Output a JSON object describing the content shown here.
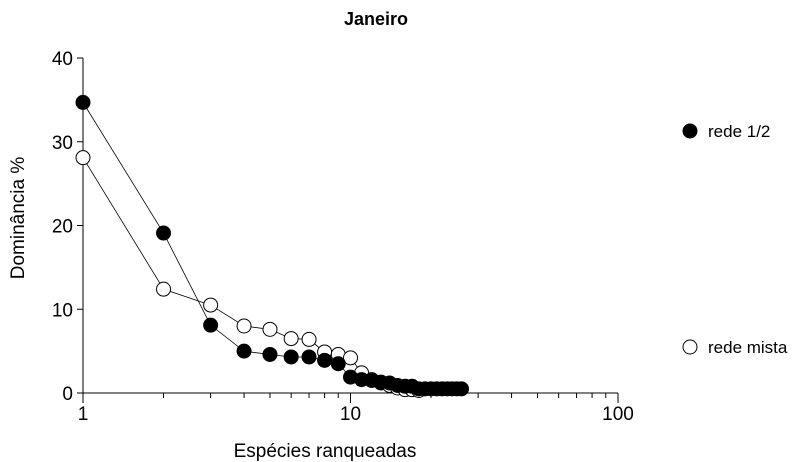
{
  "chart_data": {
    "type": "scatter",
    "title": "Janeiro",
    "xlabel": "Espécies ranqueadas",
    "ylabel": "Dominância %",
    "x_scale": "log",
    "xlim": [
      1,
      100
    ],
    "ylim": [
      0,
      40
    ],
    "x_ticks": [
      1,
      10,
      100
    ],
    "x_tick_labels": [
      "1",
      "10",
      "100"
    ],
    "y_ticks": [
      0,
      10,
      20,
      30,
      40
    ],
    "y_tick_labels": [
      "0",
      "10",
      "20",
      "30",
      "40"
    ],
    "grid": false,
    "legend_position": "right",
    "series": [
      {
        "name": "rede 1/2",
        "marker": "filled-circle",
        "color": "#000000",
        "x": [
          1,
          2,
          3,
          4,
          5,
          6,
          7,
          8,
          9,
          10,
          11,
          12,
          13,
          14,
          15,
          16,
          17,
          18,
          19,
          20,
          21,
          22,
          23,
          24,
          25,
          26
        ],
        "y": [
          34.7,
          19.1,
          8.1,
          5.0,
          4.6,
          4.3,
          4.3,
          3.9,
          3.5,
          1.9,
          1.6,
          1.5,
          1.3,
          1.2,
          0.9,
          0.8,
          0.8,
          0.5,
          0.5,
          0.5,
          0.5,
          0.5,
          0.5,
          0.5,
          0.5,
          0.5
        ]
      },
      {
        "name": "rede mista",
        "marker": "open-circle",
        "color": "#000000",
        "x": [
          1,
          2,
          3,
          4,
          5,
          6,
          7,
          8,
          9,
          10,
          11,
          12,
          13,
          14,
          15,
          16,
          17,
          18
        ],
        "y": [
          28.1,
          12.4,
          10.5,
          8.0,
          7.6,
          6.5,
          6.4,
          4.9,
          4.6,
          4.2,
          2.4,
          1.6,
          1.2,
          0.9,
          0.6,
          0.4,
          0.4,
          0.3
        ]
      }
    ]
  }
}
